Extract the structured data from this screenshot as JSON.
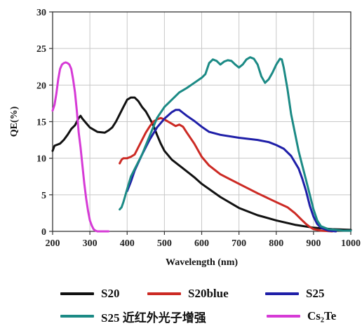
{
  "chart_data": {
    "type": "line",
    "title": "",
    "xlabel": "Wavelength (nm)",
    "ylabel": "QE(%)",
    "xlim": [
      200,
      1000
    ],
    "ylim": [
      0,
      30
    ],
    "xticks": [
      "200",
      "300",
      "400",
      "500",
      "600",
      "700",
      "800",
      "900",
      "1000"
    ],
    "yticks": [
      "0",
      "5",
      "10",
      "15",
      "20",
      "25",
      "30"
    ],
    "grid": true,
    "legend_position": "bottom",
    "series": [
      {
        "name": "S20",
        "color": "#111111",
        "x": [
          200,
          205,
          210,
          220,
          230,
          240,
          250,
          260,
          270,
          275,
          280,
          290,
          300,
          320,
          340,
          350,
          360,
          370,
          380,
          390,
          400,
          410,
          420,
          430,
          440,
          450,
          460,
          470,
          480,
          490,
          500,
          520,
          540,
          560,
          580,
          600,
          650,
          700,
          750,
          800,
          850,
          900,
          950,
          1000
        ],
        "y": [
          11,
          11.7,
          11.8,
          12,
          12.5,
          13.2,
          14,
          14.5,
          15.5,
          15.8,
          15.4,
          14.8,
          14.2,
          13.6,
          13.5,
          13.8,
          14.2,
          15,
          16,
          17,
          18,
          18.3,
          18.3,
          17.8,
          17,
          16.4,
          15.5,
          14.5,
          13.2,
          12,
          11,
          9.8,
          9,
          8.2,
          7.4,
          6.5,
          4.7,
          3.2,
          2.2,
          1.5,
          0.9,
          0.5,
          0.3,
          0.2
        ]
      },
      {
        "name": "S20blue",
        "color": "#cc2a24",
        "x": [
          380,
          385,
          390,
          400,
          410,
          420,
          430,
          440,
          450,
          460,
          470,
          480,
          490,
          500,
          510,
          520,
          530,
          540,
          550,
          560,
          580,
          600,
          620,
          650,
          700,
          750,
          800,
          830,
          850,
          870,
          880,
          890,
          900,
          920,
          950
        ],
        "y": [
          9.3,
          9.8,
          10,
          10,
          10.2,
          10.5,
          11.5,
          12.5,
          13.5,
          14.3,
          15,
          15.3,
          15.5,
          15.3,
          15,
          14.7,
          14.4,
          14.6,
          14.3,
          13.5,
          12,
          10.2,
          9,
          7.8,
          6.5,
          5.2,
          4,
          3.3,
          2.5,
          1.5,
          1,
          0.6,
          0.3,
          0.1,
          0
        ]
      },
      {
        "name": "S25",
        "color": "#1f1fa8",
        "x": [
          400,
          410,
          420,
          440,
          460,
          480,
          500,
          520,
          530,
          540,
          550,
          560,
          580,
          600,
          620,
          650,
          700,
          750,
          780,
          800,
          820,
          840,
          860,
          870,
          880,
          890,
          900,
          910,
          920,
          940,
          960
        ],
        "y": [
          5.5,
          6.8,
          8.3,
          10.5,
          12.5,
          14.2,
          15.4,
          16.3,
          16.6,
          16.6,
          16.2,
          15.8,
          15.1,
          14.3,
          13.6,
          13.2,
          12.8,
          12.5,
          12.2,
          11.8,
          11.3,
          10.3,
          8.6,
          7.2,
          5.5,
          3.5,
          2,
          1,
          0.5,
          0.1,
          0
        ]
      },
      {
        "name": "S25 近红外光子增强",
        "color": "#1b8a85",
        "x": [
          380,
          385,
          390,
          400,
          410,
          420,
          440,
          460,
          480,
          500,
          520,
          540,
          560,
          580,
          600,
          610,
          620,
          630,
          640,
          650,
          660,
          670,
          680,
          690,
          700,
          710,
          720,
          730,
          740,
          750,
          760,
          770,
          780,
          790,
          800,
          810,
          815,
          820,
          830,
          840,
          850,
          860,
          870,
          880,
          890,
          900,
          910,
          920,
          940,
          960,
          980,
          1000
        ],
        "y": [
          3,
          3.3,
          4,
          5.8,
          7.5,
          8.5,
          10.5,
          13,
          15.5,
          17,
          18,
          19,
          19.6,
          20.3,
          21,
          21.5,
          23,
          23.5,
          23.3,
          22.8,
          23.2,
          23.4,
          23.3,
          22.8,
          22.4,
          22.8,
          23.5,
          23.8,
          23.6,
          22.8,
          21.2,
          20.3,
          20.8,
          21.7,
          22.8,
          23.6,
          23.5,
          22.4,
          19.5,
          16,
          13.5,
          11,
          9,
          7,
          5,
          3,
          1.5,
          0.7,
          0.3,
          0.2,
          0.1,
          0.1
        ]
      },
      {
        "name": "Cs₂Te",
        "color": "#d63ad6",
        "x": [
          200,
          205,
          210,
          215,
          220,
          225,
          230,
          235,
          240,
          245,
          250,
          255,
          260,
          265,
          270,
          275,
          280,
          285,
          290,
          295,
          300,
          305,
          310,
          315,
          320,
          330,
          340,
          350
        ],
        "y": [
          16.5,
          17.3,
          18.8,
          20.8,
          22.2,
          22.8,
          23,
          23.1,
          23,
          22.8,
          22.2,
          20.8,
          19,
          16.5,
          13.5,
          11.5,
          9,
          6.5,
          4.5,
          2.8,
          1.5,
          0.8,
          0.3,
          0.1,
          0,
          0,
          0,
          0
        ]
      }
    ]
  }
}
